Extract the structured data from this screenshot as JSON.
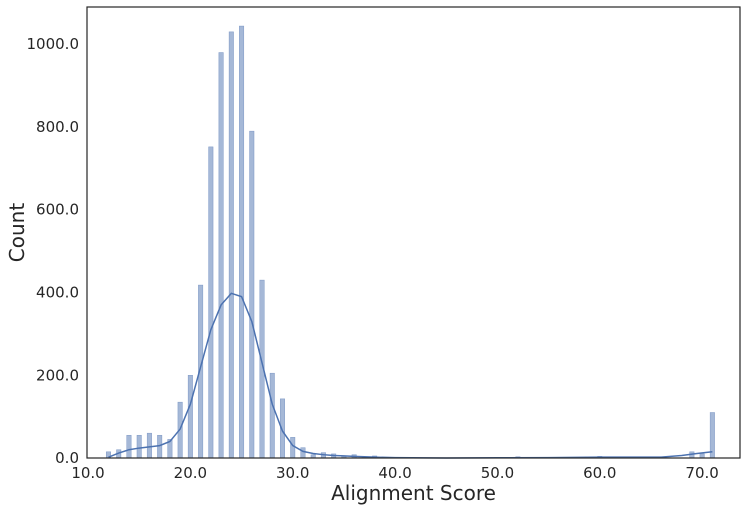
{
  "chart_data": {
    "type": "bar",
    "subtype": "histogram-with-kde",
    "title": "",
    "xlabel": "Alignment Score",
    "ylabel": "Count",
    "xlim": [
      9.9,
      73.7
    ],
    "ylim": [
      0,
      1090
    ],
    "xticks": [
      10,
      20,
      30,
      40,
      50,
      60,
      70
    ],
    "xtick_labels": [
      "10.0",
      "20.0",
      "30.0",
      "40.0",
      "50.0",
      "60.0",
      "70.0"
    ],
    "yticks": [
      0,
      200,
      400,
      600,
      800,
      1000
    ],
    "ytick_labels": [
      "0.0",
      "200.0",
      "400.0",
      "600.0",
      "800.0",
      "1000.0"
    ],
    "grid": false,
    "legend": "none",
    "colors": {
      "bar_fill": "#4c72b0",
      "bar_opacity": 0.5,
      "kde_line": "#4c72b0"
    },
    "bins": [
      {
        "x": 12.0,
        "count": 15
      },
      {
        "x": 13.0,
        "count": 20
      },
      {
        "x": 14.0,
        "count": 55
      },
      {
        "x": 15.0,
        "count": 55
      },
      {
        "x": 16.0,
        "count": 60
      },
      {
        "x": 17.0,
        "count": 55
      },
      {
        "x": 18.0,
        "count": 45
      },
      {
        "x": 19.0,
        "count": 135
      },
      {
        "x": 20.0,
        "count": 200
      },
      {
        "x": 21.0,
        "count": 418
      },
      {
        "x": 22.0,
        "count": 752
      },
      {
        "x": 23.0,
        "count": 980
      },
      {
        "x": 24.0,
        "count": 1030
      },
      {
        "x": 25.0,
        "count": 1044
      },
      {
        "x": 26.0,
        "count": 790
      },
      {
        "x": 27.0,
        "count": 430
      },
      {
        "x": 28.0,
        "count": 205
      },
      {
        "x": 29.0,
        "count": 143
      },
      {
        "x": 30.0,
        "count": 50
      },
      {
        "x": 31.0,
        "count": 25
      },
      {
        "x": 32.0,
        "count": 8
      },
      {
        "x": 33.0,
        "count": 13
      },
      {
        "x": 34.0,
        "count": 10
      },
      {
        "x": 35.0,
        "count": 5
      },
      {
        "x": 36.0,
        "count": 8
      },
      {
        "x": 37.0,
        "count": 3
      },
      {
        "x": 38.0,
        "count": 5
      },
      {
        "x": 52.0,
        "count": 3
      },
      {
        "x": 60.0,
        "count": 4
      },
      {
        "x": 61.0,
        "count": 2
      },
      {
        "x": 62.0,
        "count": 3
      },
      {
        "x": 69.0,
        "count": 15
      },
      {
        "x": 70.0,
        "count": 10
      },
      {
        "x": 71.0,
        "count": 110
      }
    ],
    "kde": [
      [
        12,
        2
      ],
      [
        13,
        12
      ],
      [
        14,
        20
      ],
      [
        15,
        24
      ],
      [
        16,
        27
      ],
      [
        17,
        30
      ],
      [
        18,
        40
      ],
      [
        19,
        70
      ],
      [
        20,
        130
      ],
      [
        21,
        220
      ],
      [
        22,
        310
      ],
      [
        23,
        370
      ],
      [
        24,
        398
      ],
      [
        25,
        390
      ],
      [
        26,
        330
      ],
      [
        27,
        230
      ],
      [
        28,
        130
      ],
      [
        29,
        65
      ],
      [
        30,
        30
      ],
      [
        31,
        16
      ],
      [
        32,
        11
      ],
      [
        33,
        8
      ],
      [
        34,
        6
      ],
      [
        35,
        5
      ],
      [
        36,
        4
      ],
      [
        37,
        3
      ],
      [
        38,
        2
      ],
      [
        40,
        1
      ],
      [
        45,
        0
      ],
      [
        50,
        0.5
      ],
      [
        55,
        1
      ],
      [
        60,
        2
      ],
      [
        63,
        2
      ],
      [
        66,
        2
      ],
      [
        68,
        6
      ],
      [
        69.5,
        11
      ],
      [
        71,
        15
      ]
    ]
  }
}
